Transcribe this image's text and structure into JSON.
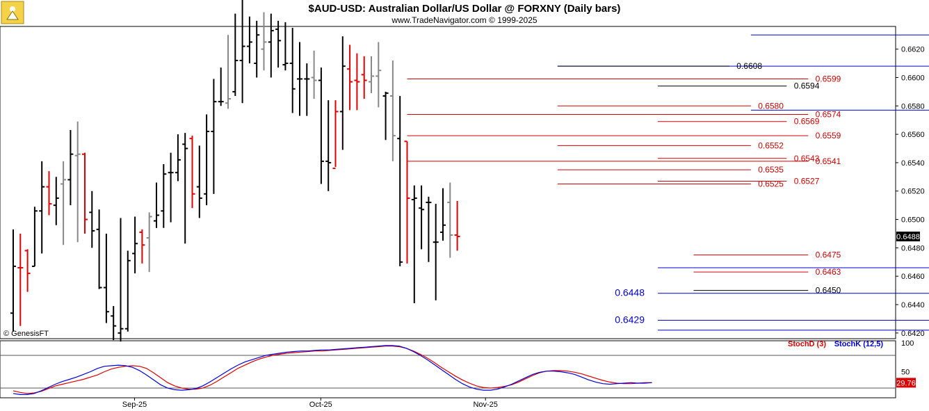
{
  "header": {
    "title": "$AUD-USD:  Australian Dollar/US Dollar @ FORXNY  (Daily bars)",
    "subtitle": "www.TradeNavigator.com © 1999-2025",
    "watermark": "© GenesisFT"
  },
  "colors": {
    "up_bar": "#000000",
    "down_bar": "#e00000",
    "neutral_bar": "#888888",
    "level_red": "#d00000",
    "level_blue": "#0000cc",
    "level_black": "#000000",
    "stoch_d": "#dd0000",
    "stoch_k": "#0000dd",
    "last_price_bg": "#000000",
    "last_stoch_bg": "#dd0000"
  },
  "chart_data": [
    {
      "type": "ohlc",
      "name": "price",
      "ylim": [
        0.6416,
        0.6636
      ],
      "yticks": [
        0.642,
        0.644,
        0.646,
        0.648,
        0.65,
        0.652,
        0.654,
        0.656,
        0.658,
        0.66,
        0.662
      ],
      "ytick_labels": [
        "0.6420",
        "0.6440",
        "0.6460",
        "0.6480",
        "0.6500",
        "0.6520",
        "0.6540",
        "0.6560",
        "0.6580",
        "0.6600",
        "0.6620"
      ],
      "last_price_label": "0.6488",
      "last_price": 0.6488,
      "bars": [
        {
          "o": 0.6434,
          "h": 0.6493,
          "l": 0.6421,
          "c": 0.6467,
          "col": "k"
        },
        {
          "o": 0.6466,
          "h": 0.649,
          "l": 0.6425,
          "c": 0.6466,
          "col": "r"
        },
        {
          "o": 0.6478,
          "h": 0.6479,
          "l": 0.6449,
          "c": 0.6462,
          "col": "r"
        },
        {
          "o": 0.6467,
          "h": 0.6509,
          "l": 0.6467,
          "c": 0.6506,
          "col": "k"
        },
        {
          "o": 0.6506,
          "h": 0.6541,
          "l": 0.6476,
          "c": 0.6523,
          "col": "k"
        },
        {
          "o": 0.6523,
          "h": 0.6534,
          "l": 0.6503,
          "c": 0.6511,
          "col": "r"
        },
        {
          "o": 0.651,
          "h": 0.653,
          "l": 0.6496,
          "c": 0.6515,
          "col": "k"
        },
        {
          "o": 0.6525,
          "h": 0.6541,
          "l": 0.6482,
          "c": 0.6528,
          "col": "g"
        },
        {
          "o": 0.6528,
          "h": 0.6563,
          "l": 0.651,
          "c": 0.6546,
          "col": "k"
        },
        {
          "o": 0.6545,
          "h": 0.6569,
          "l": 0.6484,
          "c": 0.6546,
          "col": "g"
        },
        {
          "o": 0.6546,
          "h": 0.6547,
          "l": 0.649,
          "c": 0.65,
          "col": "r"
        },
        {
          "o": 0.6505,
          "h": 0.652,
          "l": 0.648,
          "c": 0.6492,
          "col": "k"
        },
        {
          "o": 0.6493,
          "h": 0.6507,
          "l": 0.6451,
          "c": 0.6452,
          "col": "k"
        },
        {
          "o": 0.6452,
          "h": 0.649,
          "l": 0.6427,
          "c": 0.6435,
          "col": "k"
        },
        {
          "o": 0.6432,
          "h": 0.6439,
          "l": 0.6415,
          "c": 0.6425,
          "col": "k"
        },
        {
          "o": 0.642,
          "h": 0.6501,
          "l": 0.6414,
          "c": 0.6423,
          "col": "k"
        },
        {
          "o": 0.6423,
          "h": 0.6478,
          "l": 0.6421,
          "c": 0.6471,
          "col": "k"
        },
        {
          "o": 0.6476,
          "h": 0.6502,
          "l": 0.6462,
          "c": 0.6483,
          "col": "k"
        },
        {
          "o": 0.6491,
          "h": 0.6493,
          "l": 0.6469,
          "c": 0.6482,
          "col": "r"
        },
        {
          "o": 0.6487,
          "h": 0.6505,
          "l": 0.6463,
          "c": 0.6502,
          "col": "g"
        },
        {
          "o": 0.6499,
          "h": 0.6526,
          "l": 0.6494,
          "c": 0.6503,
          "col": "k"
        },
        {
          "o": 0.6506,
          "h": 0.6539,
          "l": 0.6494,
          "c": 0.6532,
          "col": "k"
        },
        {
          "o": 0.6533,
          "h": 0.6547,
          "l": 0.6498,
          "c": 0.6533,
          "col": "k"
        },
        {
          "o": 0.6533,
          "h": 0.656,
          "l": 0.6527,
          "c": 0.6542,
          "col": "k"
        },
        {
          "o": 0.6553,
          "h": 0.6561,
          "l": 0.6483,
          "c": 0.655,
          "col": "k"
        },
        {
          "o": 0.6557,
          "h": 0.6559,
          "l": 0.6508,
          "c": 0.6518,
          "col": "r"
        },
        {
          "o": 0.6523,
          "h": 0.6552,
          "l": 0.6501,
          "c": 0.6515,
          "col": "k"
        },
        {
          "o": 0.6518,
          "h": 0.6574,
          "l": 0.651,
          "c": 0.6562,
          "col": "k"
        },
        {
          "o": 0.6562,
          "h": 0.6599,
          "l": 0.6518,
          "c": 0.6583,
          "col": "k"
        },
        {
          "o": 0.6583,
          "h": 0.6607,
          "l": 0.658,
          "c": 0.6583,
          "col": "k"
        },
        {
          "o": 0.6582,
          "h": 0.663,
          "l": 0.6578,
          "c": 0.6585,
          "col": "g"
        },
        {
          "o": 0.659,
          "h": 0.6645,
          "l": 0.6587,
          "c": 0.6612,
          "col": "k"
        },
        {
          "o": 0.6612,
          "h": 0.666,
          "l": 0.6582,
          "c": 0.6622,
          "col": "k"
        },
        {
          "o": 0.6622,
          "h": 0.6643,
          "l": 0.661,
          "c": 0.6625,
          "col": "k"
        },
        {
          "o": 0.661,
          "h": 0.664,
          "l": 0.66,
          "c": 0.663,
          "col": "k"
        },
        {
          "o": 0.662,
          "h": 0.6646,
          "l": 0.6605,
          "c": 0.6625,
          "col": "g"
        },
        {
          "o": 0.6625,
          "h": 0.6645,
          "l": 0.66,
          "c": 0.6633,
          "col": "k"
        },
        {
          "o": 0.6634,
          "h": 0.664,
          "l": 0.6607,
          "c": 0.6626,
          "col": "k"
        },
        {
          "o": 0.6609,
          "h": 0.6639,
          "l": 0.6605,
          "c": 0.661,
          "col": "k"
        },
        {
          "o": 0.661,
          "h": 0.6635,
          "l": 0.6575,
          "c": 0.6592,
          "col": "k"
        },
        {
          "o": 0.6599,
          "h": 0.6625,
          "l": 0.6573,
          "c": 0.6599,
          "col": "k"
        },
        {
          "o": 0.6599,
          "h": 0.661,
          "l": 0.6573,
          "c": 0.6599,
          "col": "k"
        },
        {
          "o": 0.66,
          "h": 0.6619,
          "l": 0.6585,
          "c": 0.6598,
          "col": "g"
        },
        {
          "o": 0.6598,
          "h": 0.6607,
          "l": 0.6525,
          "c": 0.6541,
          "col": "k"
        },
        {
          "o": 0.6541,
          "h": 0.6584,
          "l": 0.652,
          "c": 0.654,
          "col": "k"
        },
        {
          "o": 0.6536,
          "h": 0.6584,
          "l": 0.6537,
          "c": 0.6576,
          "col": "r"
        },
        {
          "o": 0.6576,
          "h": 0.6629,
          "l": 0.6549,
          "c": 0.6608,
          "col": "k"
        },
        {
          "o": 0.6606,
          "h": 0.6623,
          "l": 0.6577,
          "c": 0.6597,
          "col": "r"
        },
        {
          "o": 0.6598,
          "h": 0.6617,
          "l": 0.6577,
          "c": 0.6597,
          "col": "r"
        },
        {
          "o": 0.6602,
          "h": 0.6615,
          "l": 0.6585,
          "c": 0.6598,
          "col": "r"
        },
        {
          "o": 0.6597,
          "h": 0.6615,
          "l": 0.6589,
          "c": 0.6601,
          "col": "g"
        },
        {
          "o": 0.6601,
          "h": 0.6625,
          "l": 0.6579,
          "c": 0.6605,
          "col": "g"
        },
        {
          "o": 0.6587,
          "h": 0.659,
          "l": 0.6556,
          "c": 0.6589,
          "col": "k"
        },
        {
          "o": 0.6587,
          "h": 0.6612,
          "l": 0.6541,
          "c": 0.6559,
          "col": "g"
        },
        {
          "o": 0.6557,
          "h": 0.6587,
          "l": 0.6467,
          "c": 0.647,
          "col": "k"
        },
        {
          "o": 0.6555,
          "h": 0.6555,
          "l": 0.6469,
          "c": 0.6515,
          "col": "r"
        },
        {
          "o": 0.6514,
          "h": 0.6524,
          "l": 0.6441,
          "c": 0.6515,
          "col": "k"
        },
        {
          "o": 0.6508,
          "h": 0.6524,
          "l": 0.6479,
          "c": 0.6507,
          "col": "k"
        },
        {
          "o": 0.6512,
          "h": 0.6516,
          "l": 0.647,
          "c": 0.6512,
          "col": "k"
        },
        {
          "o": 0.6484,
          "h": 0.6511,
          "l": 0.6443,
          "c": 0.6484,
          "col": "k"
        },
        {
          "o": 0.6491,
          "h": 0.6522,
          "l": 0.6485,
          "c": 0.6496,
          "col": "k"
        },
        {
          "o": 0.6512,
          "h": 0.6526,
          "l": 0.6473,
          "c": 0.6489,
          "col": "g"
        },
        {
          "o": 0.6489,
          "h": 0.6513,
          "l": 0.6478,
          "c": 0.6488,
          "col": "r"
        }
      ]
    },
    {
      "type": "line",
      "name": "stochastic",
      "ylim": [
        0,
        100
      ],
      "yticks": [
        50,
        100
      ],
      "ytick_labels": [
        "50",
        "100"
      ],
      "x_labels": [
        "Sep-25",
        "Oct-25",
        "Nov-25"
      ],
      "x_label_bars": [
        15,
        41,
        64
      ],
      "last_label": "29.76",
      "last_value": 29.76,
      "series": [
        {
          "name": "StochD (3)",
          "values": [
            15,
            12,
            10,
            11,
            14,
            19,
            24,
            27,
            30,
            33,
            36,
            40,
            44,
            50,
            55,
            58,
            60,
            61,
            60,
            56,
            48,
            39,
            30,
            24,
            20,
            18,
            18,
            20,
            25,
            32,
            40,
            48,
            56,
            62,
            68,
            73,
            77,
            80,
            82,
            84,
            85,
            86,
            87,
            88,
            88,
            89,
            90,
            91,
            92,
            93,
            94,
            95,
            96,
            97,
            97,
            96,
            93,
            88,
            82,
            75,
            67,
            58,
            50,
            42,
            35,
            29,
            24,
            21,
            20,
            21,
            23,
            26,
            31,
            37,
            43,
            48,
            51,
            52,
            52,
            51,
            49,
            46,
            42,
            38,
            34,
            31,
            29,
            28,
            28,
            29,
            30,
            30
          ]
        },
        {
          "name": "StochK (12,5)",
          "values": [
            10,
            8,
            8,
            10,
            15,
            21,
            27,
            32,
            36,
            40,
            45,
            50,
            56,
            60,
            61,
            62,
            61,
            58,
            52,
            44,
            35,
            26,
            20,
            17,
            16,
            17,
            19,
            24,
            31,
            39,
            47,
            55,
            62,
            68,
            72,
            76,
            80,
            82,
            84,
            86,
            87,
            88,
            88,
            89,
            90,
            90,
            91,
            92,
            93,
            94,
            95,
            96,
            97,
            98,
            98,
            97,
            93,
            87,
            80,
            72,
            63,
            54,
            45,
            36,
            28,
            22,
            18,
            16,
            16,
            18,
            22,
            27,
            33,
            39,
            45,
            49,
            51,
            51,
            50,
            48,
            45,
            40,
            35,
            31,
            28,
            27,
            28,
            29,
            30,
            29,
            29,
            30
          ]
        }
      ]
    }
  ],
  "levels": [
    {
      "label": "0.6630",
      "value": 0.663,
      "color": "level_blue",
      "size": "big",
      "x0": 103,
      "x1": 134,
      "lab_bar": 136
    },
    {
      "label": "0.6608",
      "value": 0.6608,
      "color": "level_blue",
      "size": "big",
      "x0": 76,
      "x1": 134,
      "lab_bar": 136
    },
    {
      "label": "0.6608",
      "value": 0.6608,
      "color": "level_black",
      "size": "small",
      "x0": 76,
      "x1": 100,
      "lab_bar": 101
    },
    {
      "label": "0.6599",
      "value": 0.6599,
      "color": "level_red",
      "size": "small",
      "x0": 55,
      "x1": 111,
      "lab_bar": 112
    },
    {
      "label": "0.6594",
      "value": 0.6594,
      "color": "level_black",
      "size": "small",
      "x0": 90,
      "x1": 108,
      "lab_bar": 109
    },
    {
      "label": "0.6580",
      "value": 0.658,
      "color": "level_red",
      "size": "small",
      "x0": 76,
      "x1": 103,
      "lab_bar": 104
    },
    {
      "label": "0.6577",
      "value": 0.6577,
      "color": "level_blue",
      "size": "big",
      "x0": 103,
      "x1": 134,
      "lab_bar": 136
    },
    {
      "label": "0.6574",
      "value": 0.6574,
      "color": "level_red",
      "size": "small",
      "x0": 55,
      "x1": 111,
      "lab_bar": 112
    },
    {
      "label": "0.6569",
      "value": 0.6569,
      "color": "level_red",
      "size": "small",
      "x0": 90,
      "x1": 108,
      "lab_bar": 109
    },
    {
      "label": "0.6559",
      "value": 0.6559,
      "color": "level_red",
      "size": "small",
      "x0": 55,
      "x1": 111,
      "lab_bar": 112
    },
    {
      "label": "0.6552",
      "value": 0.6552,
      "color": "level_red",
      "size": "small",
      "x0": 76,
      "x1": 103,
      "lab_bar": 104
    },
    {
      "label": "0.6543",
      "value": 0.6543,
      "color": "level_red",
      "size": "small",
      "x0": 90,
      "x1": 108,
      "lab_bar": 109
    },
    {
      "label": "0.6541",
      "value": 0.6541,
      "color": "level_red",
      "size": "small",
      "x0": 55,
      "x1": 111,
      "lab_bar": 112
    },
    {
      "label": "0.6535",
      "value": 0.6535,
      "color": "level_red",
      "size": "small",
      "x0": 76,
      "x1": 103,
      "lab_bar": 104
    },
    {
      "label": "0.6527",
      "value": 0.6527,
      "color": "level_red",
      "size": "small",
      "x0": 90,
      "x1": 108,
      "lab_bar": 109
    },
    {
      "label": "0.6525",
      "value": 0.6525,
      "color": "level_red",
      "size": "small",
      "x0": 76,
      "x1": 103,
      "lab_bar": 104
    },
    {
      "label": "0.6475",
      "value": 0.6475,
      "color": "level_red",
      "size": "small",
      "x0": 95,
      "x1": 111,
      "lab_bar": 112
    },
    {
      "label": "0.6466",
      "value": 0.6466,
      "color": "level_blue",
      "size": "big",
      "x0": 90,
      "x1": 131,
      "lab_bar": 133
    },
    {
      "label": "0.6463",
      "value": 0.6463,
      "color": "level_red",
      "size": "small",
      "x0": 95,
      "x1": 111,
      "lab_bar": 112
    },
    {
      "label": "0.6450",
      "value": 0.645,
      "color": "level_black",
      "size": "small",
      "x0": 95,
      "x1": 111,
      "lab_bar": 112
    },
    {
      "label": "0.6448",
      "value": 0.6448,
      "color": "level_blue",
      "size": "big",
      "x0": 90,
      "x1": 131,
      "lab_bar": 84
    },
    {
      "label": "0.6429",
      "value": 0.6429,
      "color": "level_blue",
      "size": "big",
      "x0": 90,
      "x1": 131,
      "lab_bar": 84
    },
    {
      "label": "0.6422",
      "value": 0.6422,
      "color": "level_blue",
      "size": "big",
      "x0": 90,
      "x1": 131,
      "lab_bar": 133
    }
  ]
}
